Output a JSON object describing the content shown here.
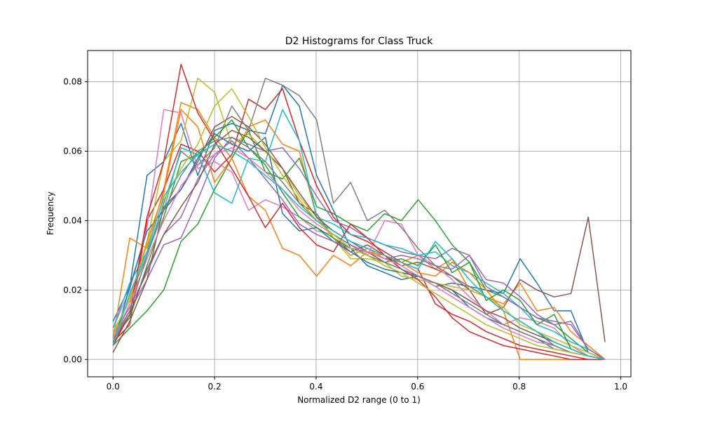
{
  "chart_data": {
    "type": "line",
    "title": "D2 Histograms for Class Truck",
    "xlabel": "Normalized D2 range (0 to 1)",
    "ylabel": "Frequency",
    "xlim": [
      -0.05,
      1.02
    ],
    "ylim": [
      -0.005,
      0.089
    ],
    "x_ticks": [
      0.0,
      0.2,
      0.4,
      0.6,
      0.8,
      1.0
    ],
    "x_tick_labels": [
      "0.0",
      "0.2",
      "0.4",
      "0.6",
      "0.8",
      "1.0"
    ],
    "y_ticks": [
      0.0,
      0.02,
      0.04,
      0.06,
      0.08
    ],
    "y_tick_labels": [
      "0.00",
      "0.02",
      "0.04",
      "0.06",
      "0.08"
    ],
    "grid": true,
    "x": [
      0.0,
      0.033,
      0.067,
      0.1,
      0.134,
      0.167,
      0.2,
      0.234,
      0.267,
      0.3,
      0.334,
      0.367,
      0.401,
      0.434,
      0.468,
      0.501,
      0.535,
      0.568,
      0.601,
      0.635,
      0.668,
      0.702,
      0.735,
      0.769,
      0.802,
      0.835,
      0.869,
      0.902,
      0.936,
      0.969
    ],
    "series": [
      {
        "color": "#1f77b4",
        "values": [
          0.011,
          0.021,
          0.053,
          0.057,
          0.068,
          0.053,
          0.066,
          0.068,
          0.066,
          0.065,
          0.079,
          0.073,
          0.053,
          0.043,
          0.032,
          0.027,
          0.025,
          0.023,
          0.024,
          0.021,
          0.022,
          0.021,
          0.02,
          0.019,
          0.029,
          0.022,
          0.014,
          0.014,
          0.002,
          0.0
        ]
      },
      {
        "color": "#ff7f0e",
        "values": [
          0.006,
          0.035,
          0.032,
          0.049,
          0.074,
          0.072,
          0.064,
          0.058,
          0.067,
          0.069,
          0.062,
          0.06,
          0.041,
          0.035,
          0.03,
          0.032,
          0.029,
          0.028,
          0.03,
          0.026,
          0.029,
          0.02,
          0.018,
          0.016,
          0.022,
          0.014,
          0.015,
          0.008,
          0.004,
          0.0
        ]
      },
      {
        "color": "#2ca02c",
        "values": [
          0.004,
          0.009,
          0.014,
          0.02,
          0.034,
          0.039,
          0.049,
          0.058,
          0.066,
          0.054,
          0.052,
          0.058,
          0.044,
          0.042,
          0.039,
          0.037,
          0.042,
          0.04,
          0.046,
          0.04,
          0.033,
          0.028,
          0.02,
          0.018,
          0.015,
          0.012,
          0.01,
          0.006,
          0.002,
          0.0
        ]
      },
      {
        "color": "#d62728",
        "values": [
          0.005,
          0.01,
          0.04,
          0.049,
          0.062,
          0.06,
          0.054,
          0.059,
          0.075,
          0.072,
          0.078,
          0.063,
          0.05,
          0.041,
          0.036,
          0.034,
          0.031,
          0.028,
          0.026,
          0.016,
          0.013,
          0.011,
          0.008,
          0.006,
          0.004,
          0.003,
          0.002,
          0.001,
          0.0,
          0.0
        ]
      },
      {
        "color": "#9467bd",
        "values": [
          0.006,
          0.014,
          0.023,
          0.033,
          0.035,
          0.046,
          0.058,
          0.064,
          0.062,
          0.06,
          0.061,
          0.055,
          0.047,
          0.04,
          0.038,
          0.035,
          0.033,
          0.031,
          0.03,
          0.029,
          0.032,
          0.03,
          0.023,
          0.022,
          0.018,
          0.013,
          0.01,
          0.011,
          0.003,
          0.0
        ]
      },
      {
        "color": "#8c564b",
        "values": [
          0.002,
          0.011,
          0.023,
          0.044,
          0.049,
          0.057,
          0.067,
          0.07,
          0.067,
          0.062,
          0.055,
          0.045,
          0.042,
          0.035,
          0.031,
          0.033,
          0.03,
          0.027,
          0.028,
          0.026,
          0.024,
          0.02,
          0.013,
          0.015,
          0.023,
          0.02,
          0.018,
          0.019,
          0.041,
          0.005
        ]
      },
      {
        "color": "#e377c2",
        "values": [
          0.009,
          0.02,
          0.038,
          0.072,
          0.071,
          0.055,
          0.057,
          0.054,
          0.043,
          0.046,
          0.044,
          0.041,
          0.037,
          0.036,
          0.033,
          0.03,
          0.04,
          0.039,
          0.03,
          0.027,
          0.023,
          0.018,
          0.014,
          0.01,
          0.012,
          0.011,
          0.009,
          0.004,
          0.001,
          0.0
        ]
      },
      {
        "color": "#7f7f7f",
        "values": [
          0.007,
          0.018,
          0.03,
          0.045,
          0.06,
          0.056,
          0.061,
          0.073,
          0.066,
          0.081,
          0.079,
          0.076,
          0.069,
          0.045,
          0.051,
          0.04,
          0.043,
          0.038,
          0.032,
          0.027,
          0.024,
          0.021,
          0.018,
          0.014,
          0.011,
          0.008,
          0.004,
          0.002,
          0.001,
          0.0
        ]
      },
      {
        "color": "#bcbd22",
        "values": [
          0.008,
          0.017,
          0.034,
          0.057,
          0.063,
          0.081,
          0.077,
          0.062,
          0.065,
          0.06,
          0.055,
          0.047,
          0.041,
          0.035,
          0.029,
          0.029,
          0.028,
          0.024,
          0.023,
          0.022,
          0.021,
          0.02,
          0.018,
          0.015,
          0.01,
          0.008,
          0.006,
          0.004,
          0.002,
          0.0
        ]
      },
      {
        "color": "#17becf",
        "values": [
          0.009,
          0.022,
          0.031,
          0.043,
          0.061,
          0.059,
          0.048,
          0.045,
          0.058,
          0.057,
          0.072,
          0.063,
          0.041,
          0.039,
          0.036,
          0.035,
          0.033,
          0.032,
          0.03,
          0.031,
          0.027,
          0.025,
          0.022,
          0.019,
          0.015,
          0.01,
          0.008,
          0.005,
          0.003,
          0.0
        ]
      },
      {
        "color": "#1f77b4",
        "values": [
          0.004,
          0.021,
          0.037,
          0.043,
          0.049,
          0.058,
          0.065,
          0.062,
          0.06,
          0.064,
          0.042,
          0.037,
          0.038,
          0.034,
          0.031,
          0.028,
          0.026,
          0.025,
          0.024,
          0.022,
          0.02,
          0.015,
          0.012,
          0.01,
          0.008,
          0.006,
          0.003,
          0.002,
          0.001,
          0.0
        ]
      },
      {
        "color": "#ff7f0e",
        "values": [
          0.005,
          0.016,
          0.034,
          0.048,
          0.072,
          0.067,
          0.051,
          0.058,
          0.047,
          0.043,
          0.032,
          0.03,
          0.024,
          0.03,
          0.027,
          0.031,
          0.03,
          0.028,
          0.025,
          0.024,
          0.028,
          0.025,
          0.02,
          0.014,
          0.0,
          0.0,
          0.0,
          0.0,
          0.0,
          0.0
        ]
      },
      {
        "color": "#2ca02c",
        "values": [
          0.006,
          0.012,
          0.027,
          0.041,
          0.057,
          0.059,
          0.064,
          0.069,
          0.061,
          0.056,
          0.048,
          0.041,
          0.038,
          0.035,
          0.032,
          0.03,
          0.028,
          0.029,
          0.027,
          0.033,
          0.025,
          0.028,
          0.017,
          0.02,
          0.017,
          0.01,
          0.013,
          0.003,
          0.001,
          0.0
        ]
      },
      {
        "color": "#d62728",
        "values": [
          0.004,
          0.013,
          0.041,
          0.057,
          0.085,
          0.071,
          0.063,
          0.055,
          0.047,
          0.038,
          0.045,
          0.038,
          0.033,
          0.031,
          0.039,
          0.035,
          0.03,
          0.026,
          0.023,
          0.018,
          0.012,
          0.008,
          0.006,
          0.004,
          0.003,
          0.002,
          0.001,
          0.0,
          0.0,
          0.0
        ]
      },
      {
        "color": "#9467bd",
        "values": [
          0.007,
          0.015,
          0.025,
          0.036,
          0.041,
          0.052,
          0.059,
          0.063,
          0.058,
          0.052,
          0.046,
          0.039,
          0.036,
          0.034,
          0.032,
          0.031,
          0.029,
          0.03,
          0.029,
          0.027,
          0.026,
          0.03,
          0.021,
          0.018,
          0.015,
          0.012,
          0.011,
          0.01,
          0.003,
          0.0
        ]
      },
      {
        "color": "#8c564b",
        "values": [
          0.005,
          0.013,
          0.026,
          0.036,
          0.044,
          0.051,
          0.062,
          0.066,
          0.064,
          0.06,
          0.055,
          0.048,
          0.041,
          0.037,
          0.034,
          0.031,
          0.028,
          0.026,
          0.024,
          0.022,
          0.02,
          0.017,
          0.014,
          0.012,
          0.009,
          0.007,
          0.005,
          0.003,
          0.001,
          0.0
        ]
      },
      {
        "color": "#e377c2",
        "values": [
          0.006,
          0.016,
          0.029,
          0.04,
          0.05,
          0.056,
          0.059,
          0.061,
          0.058,
          0.054,
          0.049,
          0.043,
          0.039,
          0.036,
          0.033,
          0.031,
          0.029,
          0.027,
          0.024,
          0.021,
          0.018,
          0.015,
          0.012,
          0.009,
          0.007,
          0.005,
          0.004,
          0.002,
          0.001,
          0.0
        ]
      },
      {
        "color": "#7f7f7f",
        "values": [
          0.005,
          0.014,
          0.03,
          0.043,
          0.053,
          0.06,
          0.063,
          0.064,
          0.061,
          0.057,
          0.051,
          0.045,
          0.04,
          0.036,
          0.033,
          0.03,
          0.028,
          0.026,
          0.024,
          0.022,
          0.019,
          0.016,
          0.013,
          0.01,
          0.008,
          0.006,
          0.004,
          0.002,
          0.001,
          0.0
        ]
      },
      {
        "color": "#bcbd22",
        "values": [
          0.007,
          0.018,
          0.033,
          0.046,
          0.055,
          0.062,
          0.073,
          0.078,
          0.07,
          0.061,
          0.053,
          0.046,
          0.04,
          0.036,
          0.032,
          0.03,
          0.027,
          0.025,
          0.022,
          0.019,
          0.016,
          0.013,
          0.01,
          0.008,
          0.006,
          0.004,
          0.003,
          0.002,
          0.001,
          0.0
        ]
      },
      {
        "color": "#17becf",
        "values": [
          0.004,
          0.019,
          0.031,
          0.047,
          0.054,
          0.059,
          0.062,
          0.06,
          0.057,
          0.053,
          0.049,
          0.044,
          0.04,
          0.037,
          0.034,
          0.032,
          0.03,
          0.028,
          0.026,
          0.034,
          0.029,
          0.023,
          0.018,
          0.014,
          0.011,
          0.008,
          0.005,
          0.003,
          0.001,
          0.0
        ]
      }
    ]
  }
}
